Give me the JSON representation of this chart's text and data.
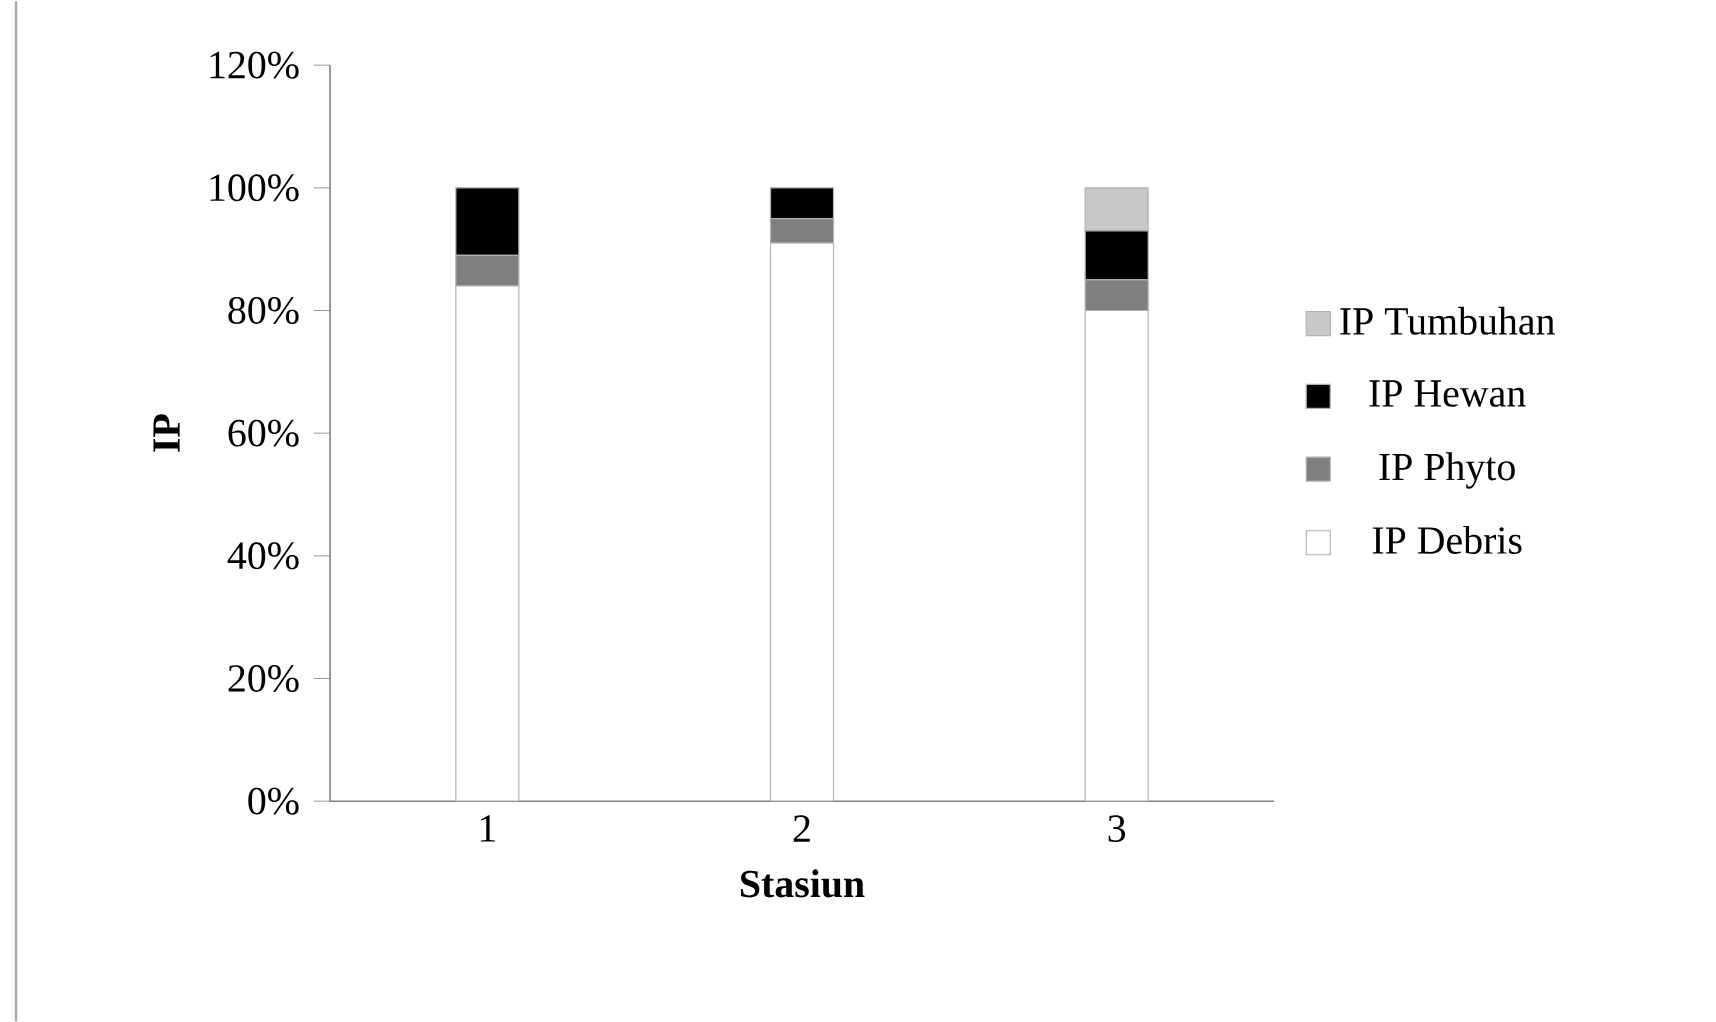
{
  "chart_data": {
    "type": "bar",
    "stacked": true,
    "xlabel": "Stasiun",
    "ylabel": "IP",
    "categories": [
      "1",
      "2",
      "3"
    ],
    "series": [
      {
        "name": "IP Debris",
        "color": "#ffffff",
        "values": [
          84,
          91,
          80
        ]
      },
      {
        "name": "IP Phyto",
        "color": "#7f7f7f",
        "values": [
          5,
          4,
          5
        ]
      },
      {
        "name": "IP Hewan",
        "color": "#000000",
        "values": [
          11,
          5,
          8
        ]
      },
      {
        "name": "IP Tumbuhan",
        "color": "#c8c8c8",
        "values": [
          0,
          0,
          7
        ]
      }
    ],
    "ylim": [
      0,
      120
    ],
    "yticks": [
      {
        "value": 0,
        "label": "0%"
      },
      {
        "value": 20,
        "label": "20%"
      },
      {
        "value": 40,
        "label": "40%"
      },
      {
        "value": 60,
        "label": "60%"
      },
      {
        "value": 80,
        "label": "80%"
      },
      {
        "value": 100,
        "label": "100%"
      },
      {
        "value": 120,
        "label": "120%"
      }
    ],
    "legend": "right",
    "grid": false
  }
}
